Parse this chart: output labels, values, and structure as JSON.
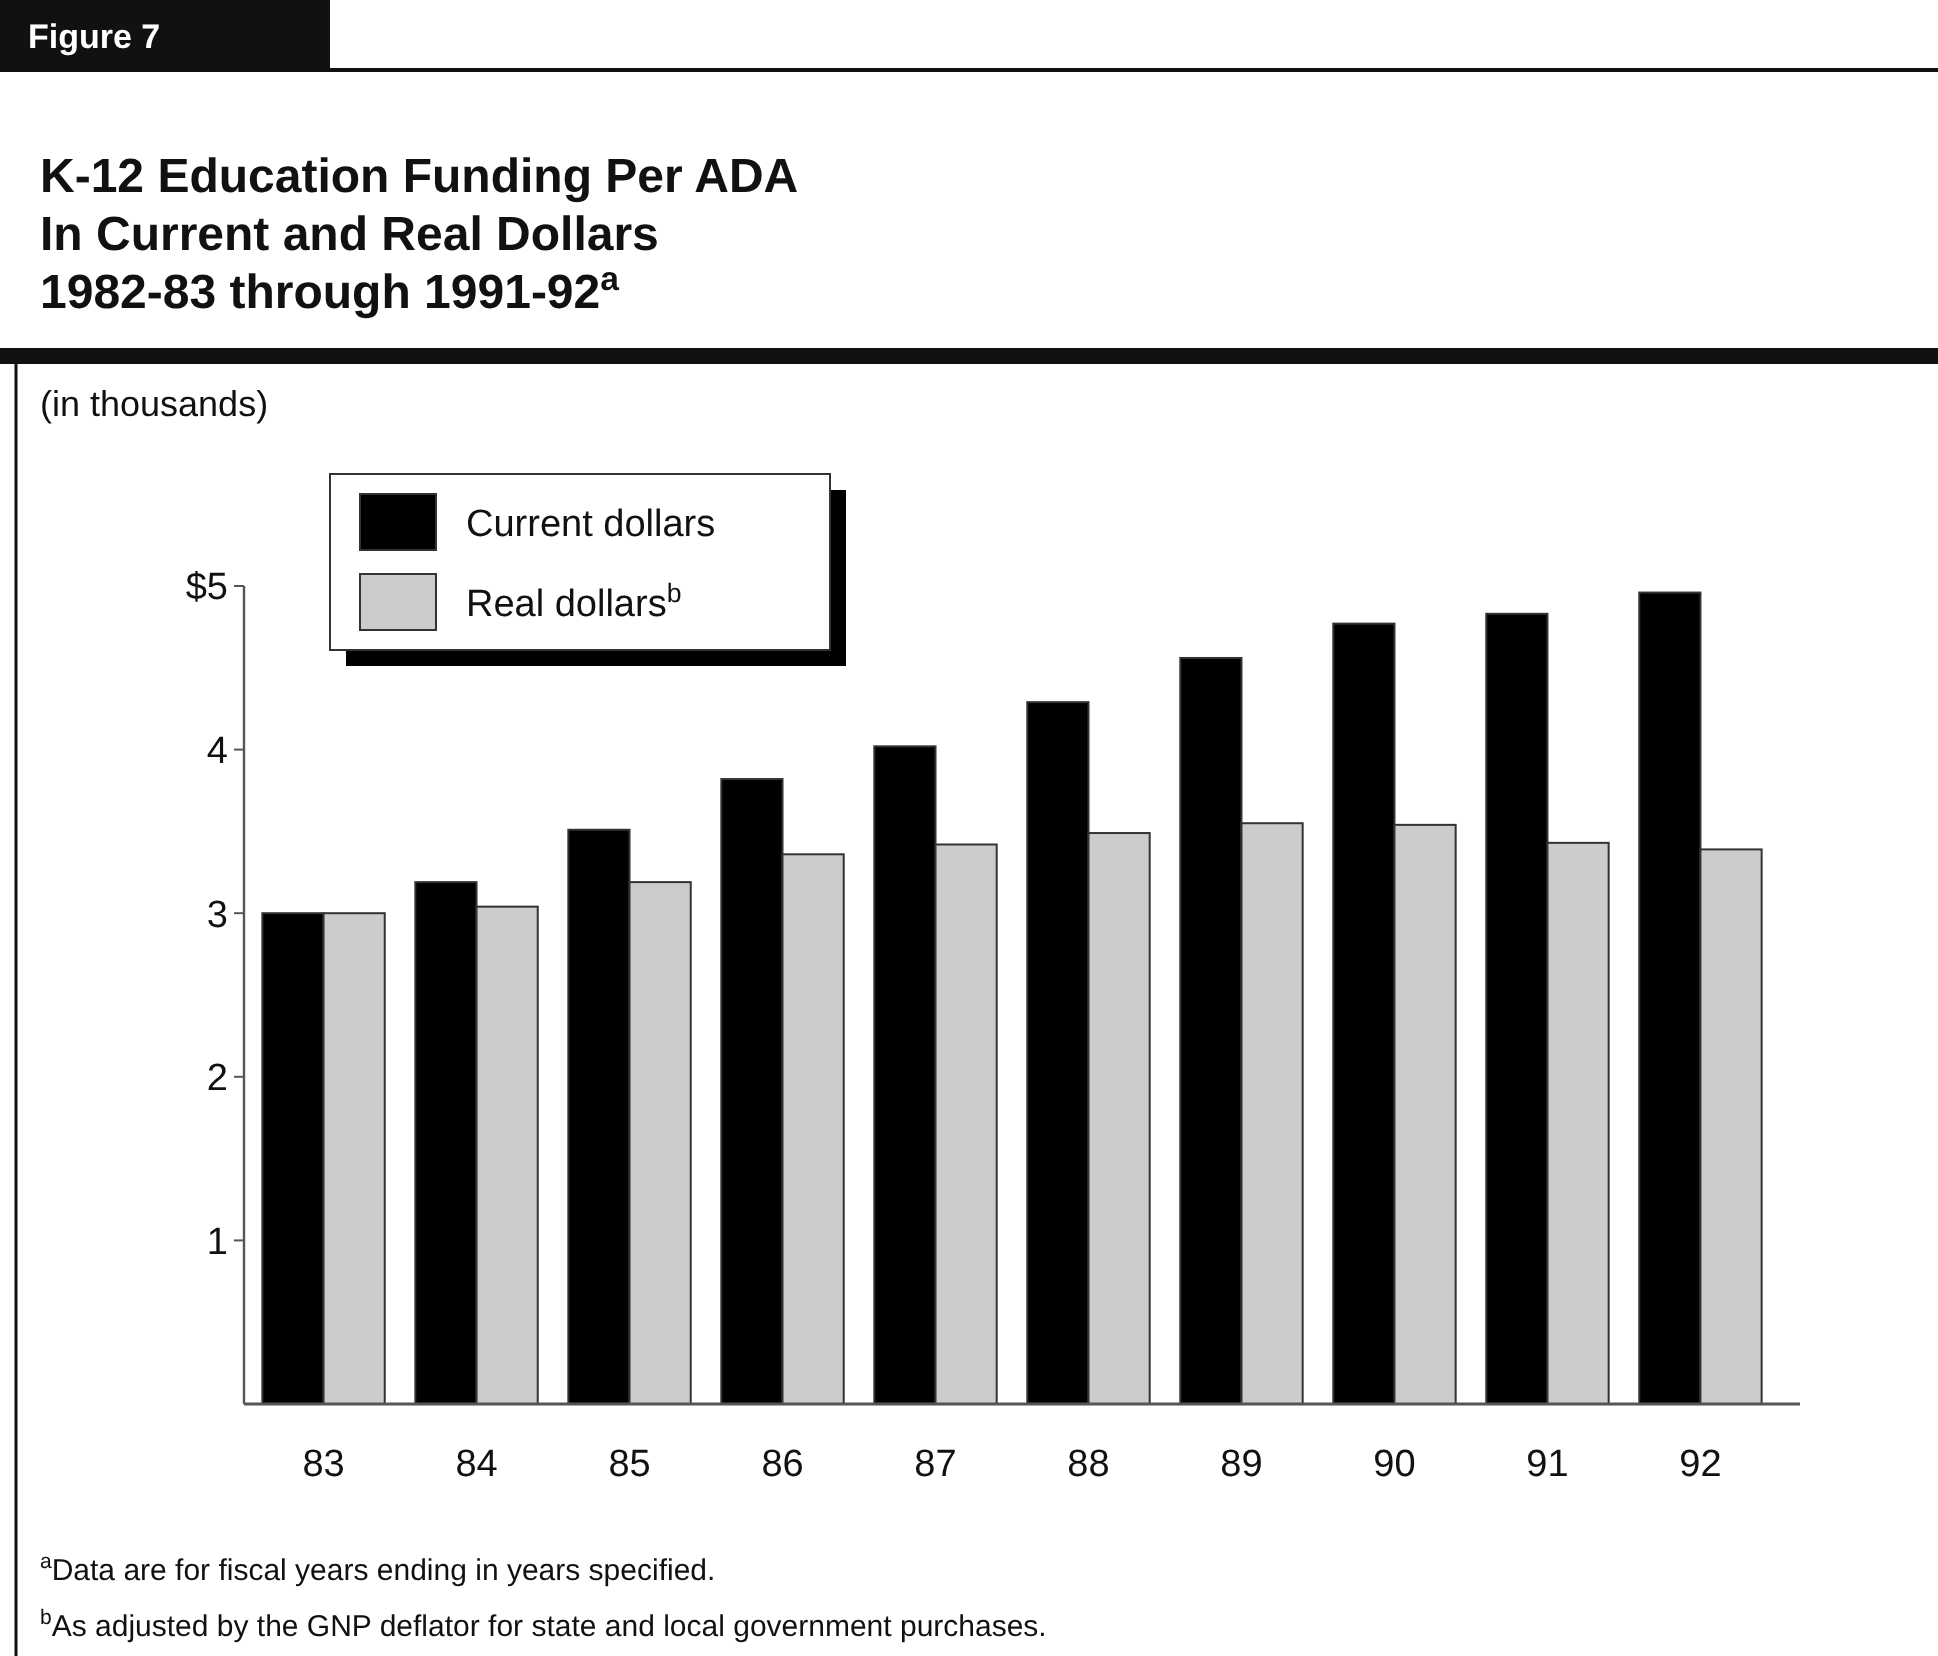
{
  "chart_data": {
    "type": "bar",
    "subtitle": "Figure 7",
    "title": "K-12 Education Funding Per ADA\nIn Current and Real Dollars\n1982-83 through 1991-92$^{a}$",
    "ylabel": "(in thousands)",
    "categories": [
      "83",
      "84",
      "85",
      "86",
      "87",
      "88",
      "89",
      "90",
      "91",
      "92"
    ],
    "series": [
      {
        "name": "Current dollars",
        "color": "#000000",
        "values": [
          3.0,
          3.19,
          3.51,
          3.82,
          4.02,
          4.29,
          4.56,
          4.77,
          4.83,
          4.96
        ]
      },
      {
        "name": "Real dollars$^{b}$",
        "color": "#cccccc",
        "values": [
          3.0,
          3.04,
          3.19,
          3.36,
          3.42,
          3.49,
          3.55,
          3.54,
          3.43,
          3.39
        ]
      }
    ],
    "ylim": [
      0,
      5
    ],
    "yticks": [
      {
        "value": 1,
        "label": "1"
      },
      {
        "value": 2,
        "label": "2"
      },
      {
        "value": 3,
        "label": "3"
      },
      {
        "value": 4,
        "label": "4"
      },
      {
        "value": 5,
        "label": "$5"
      }
    ],
    "legend": "top left",
    "grid": false,
    "annotations": [
      "$^{a}$Data are for fiscal years ending in years specified.",
      "$^{b}$As adjusted by the GNP deflator for state and local government purchases."
    ]
  }
}
